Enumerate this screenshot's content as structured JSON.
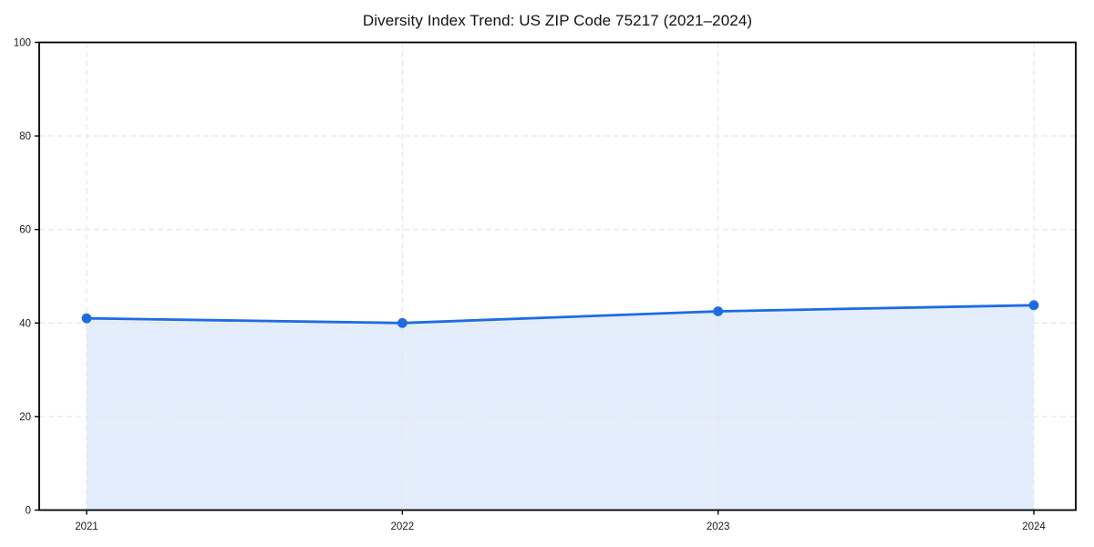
{
  "page": {
    "background": "#ffffff"
  },
  "chart_data": {
    "type": "line",
    "title": "Diversity Index Trend: US ZIP Code 75217 (2021–2024)",
    "categories": [
      "2021",
      "2022",
      "2023",
      "2024"
    ],
    "series": [
      {
        "name": "Diversity Index",
        "values": [
          41,
          40,
          42.5,
          43.8
        ]
      }
    ],
    "xlabel": "",
    "ylabel": "",
    "ylim": [
      0,
      100
    ],
    "yticks": [
      0,
      20,
      40,
      60,
      80,
      100
    ],
    "grid": "on",
    "grid_style": "dashed",
    "legend": "none",
    "marker": "circle",
    "area_fill": true,
    "colors": {
      "line": "#1e6ce0",
      "area": "#1e6ce0",
      "area_opacity": 0.12,
      "grid": "#e5e5e5",
      "spine": "#000000",
      "tick_text": "#1a1a1a",
      "title_text": "#111111",
      "background": "#ffffff"
    }
  }
}
